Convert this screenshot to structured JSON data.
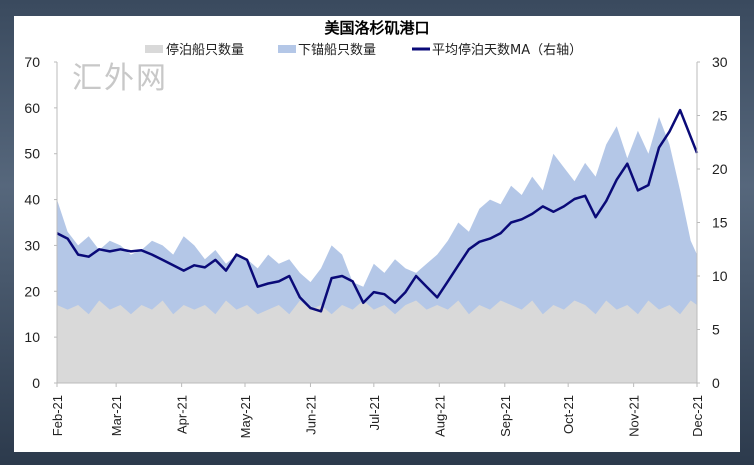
{
  "chart_data": {
    "type": "area",
    "title": "美国洛杉矶港口",
    "legend": [
      "停泊船只数量",
      "下锚船只数量",
      "平均停泊天数MA（右轴）"
    ],
    "legend_placement": "top-center",
    "x_unit": "days since 2021-02-01",
    "x": [
      0,
      5,
      10,
      15,
      20,
      25,
      30,
      35,
      40,
      45,
      50,
      55,
      60,
      65,
      70,
      75,
      80,
      85,
      90,
      95,
      100,
      105,
      110,
      115,
      120,
      125,
      130,
      135,
      140,
      145,
      150,
      155,
      160,
      165,
      170,
      175,
      180,
      185,
      190,
      195,
      200,
      205,
      210,
      215,
      220,
      225,
      230,
      235,
      240,
      245,
      250,
      255,
      260,
      265,
      270,
      275,
      280,
      285,
      290,
      295,
      300,
      303
    ],
    "xticks": [
      {
        "day": 0,
        "label": "Feb-21"
      },
      {
        "day": 28,
        "label": "Mar-21"
      },
      {
        "day": 59,
        "label": "Apr-21"
      },
      {
        "day": 89,
        "label": "May-21"
      },
      {
        "day": 120,
        "label": "Jun-21"
      },
      {
        "day": 150,
        "label": "Jul-21"
      },
      {
        "day": 181,
        "label": "Aug-21"
      },
      {
        "day": 212,
        "label": "Sep-21"
      },
      {
        "day": 242,
        "label": "Oct-21"
      },
      {
        "day": 273,
        "label": "Nov-21"
      },
      {
        "day": 303,
        "label": "Dec-21"
      }
    ],
    "ylim": [
      0,
      70
    ],
    "yticks": [
      "0",
      "10",
      "20",
      "30",
      "40",
      "50",
      "60",
      "70"
    ],
    "y2lim": [
      0,
      30
    ],
    "y2ticks": [
      "0",
      "5",
      "10",
      "15",
      "20",
      "25",
      "30"
    ],
    "series": [
      {
        "name": "停泊船只数量",
        "type": "area",
        "axis": "left",
        "color": "#d9d9d9",
        "values": [
          17,
          16,
          17,
          15,
          18,
          16,
          17,
          15,
          17,
          16,
          18,
          15,
          17,
          16,
          17,
          15,
          18,
          16,
          17,
          15,
          16,
          17,
          15,
          18,
          16,
          17,
          15,
          17,
          16,
          18,
          16,
          17,
          15,
          17,
          18,
          16,
          17,
          16,
          18,
          15,
          17,
          16,
          18,
          17,
          16,
          18,
          15,
          17,
          16,
          18,
          17,
          15,
          18,
          16,
          17,
          15,
          18,
          16,
          17,
          15,
          18,
          17
        ]
      },
      {
        "name": "下锚船只数量",
        "type": "area",
        "axis": "left",
        "stacked_total": true,
        "color": "#b4c7e7",
        "values": [
          40,
          33,
          30,
          32,
          29,
          31,
          30,
          28,
          29,
          31,
          30,
          28,
          32,
          30,
          27,
          29,
          26,
          28,
          27,
          25,
          28,
          26,
          27,
          24,
          22,
          25,
          30,
          28,
          22,
          21,
          26,
          24,
          27,
          25,
          24,
          26,
          28,
          31,
          35,
          33,
          38,
          40,
          39,
          43,
          41,
          45,
          42,
          50,
          47,
          44,
          48,
          45,
          52,
          56,
          49,
          55,
          50,
          58,
          52,
          42,
          31,
          28
        ]
      },
      {
        "name": "平均停泊天数MA（右轴）",
        "type": "line",
        "axis": "right",
        "color": "#0a0a78",
        "values": [
          14,
          13.5,
          12,
          11.8,
          12.5,
          12.3,
          12.5,
          12.3,
          12.4,
          12,
          11.5,
          11,
          10.5,
          11,
          10.8,
          11.5,
          10.5,
          12,
          11.5,
          9,
          9.3,
          9.5,
          10,
          8,
          7,
          6.7,
          9.8,
          10,
          9.5,
          7.5,
          8.5,
          8.3,
          7.5,
          8.5,
          10,
          9,
          8,
          9.5,
          11,
          12.5,
          13.2,
          13.5,
          14,
          15,
          15.3,
          15.8,
          16.5,
          16,
          16.5,
          17.2,
          17.5,
          15.5,
          17,
          19,
          20.5,
          18,
          18.5,
          22,
          23.5,
          25.5,
          23,
          21.5
        ]
      }
    ]
  },
  "watermark": "汇外网"
}
